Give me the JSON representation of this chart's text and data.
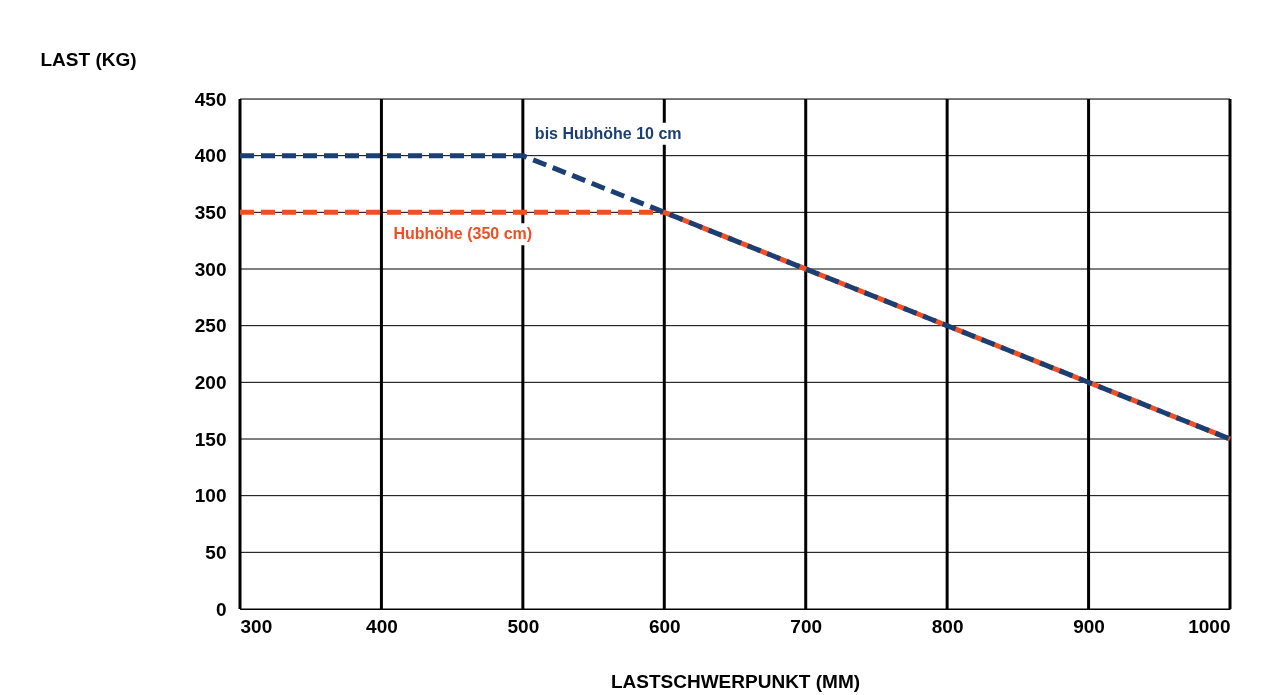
{
  "chart_data": {
    "type": "line",
    "xlabel": "LASTSCHWERPUNKT (MM)",
    "ylabel": "LAST (KG)",
    "series": [
      {
        "name": "Hubhöhe (350 cm)",
        "color": "#f04e23",
        "x": [
          300,
          600,
          1000
        ],
        "values": [
          350,
          350,
          150
        ]
      },
      {
        "name": "bis Hubhöhe 10 cm",
        "color": "#1b3f73",
        "x": [
          300,
          500,
          1000
        ],
        "values": [
          400,
          400,
          150
        ]
      }
    ],
    "xlim": [
      300,
      1000
    ],
    "xticks": [
      300,
      400,
      500,
      600,
      700,
      800,
      900,
      1000
    ],
    "ylim": [
      0,
      450
    ],
    "yticks": [
      0,
      50,
      100,
      150,
      200,
      250,
      300,
      350,
      400,
      450
    ],
    "grid": true,
    "line_style": "dashed",
    "marker": "none"
  }
}
